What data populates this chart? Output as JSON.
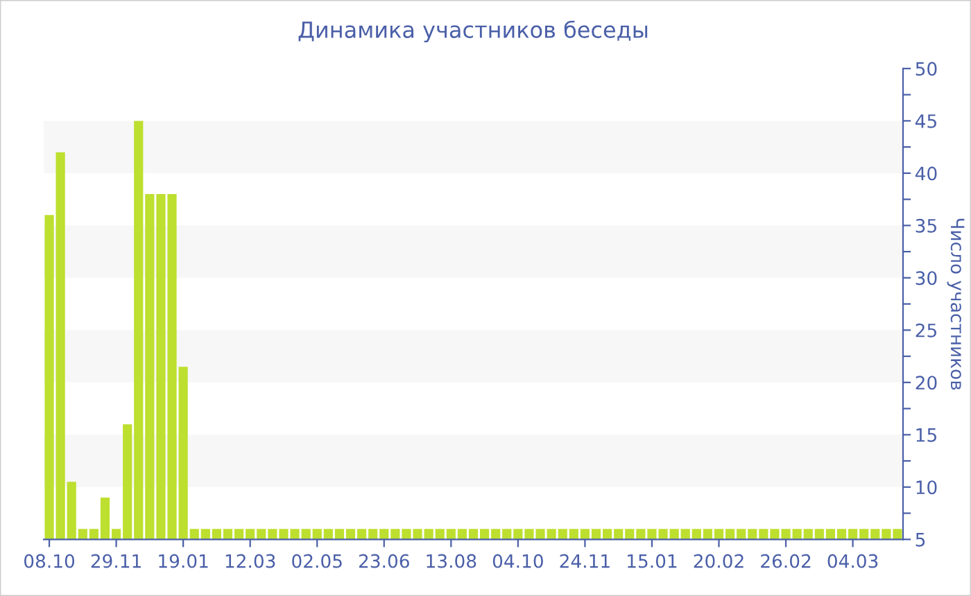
{
  "chart_data": {
    "type": "bar",
    "title": "Динамика участников беседы",
    "ylabel": "Число участников",
    "categories": [
      "08.10",
      null,
      null,
      null,
      null,
      null,
      "29.11",
      null,
      null,
      null,
      null,
      null,
      "19.01",
      null,
      null,
      null,
      null,
      null,
      "12.03",
      null,
      null,
      null,
      null,
      null,
      "02.05",
      null,
      null,
      null,
      null,
      null,
      "23.06",
      null,
      null,
      null,
      null,
      null,
      "13.08",
      null,
      null,
      null,
      null,
      null,
      "04.10",
      null,
      null,
      null,
      null,
      null,
      "24.11",
      null,
      null,
      null,
      null,
      null,
      "15.01",
      null,
      null,
      null,
      null,
      null,
      "20.02",
      null,
      null,
      null,
      null,
      null,
      "26.02",
      null,
      null,
      null,
      null,
      null,
      "04.03",
      null,
      null,
      null,
      null
    ],
    "values": [
      36,
      42,
      10.5,
      6,
      6,
      9,
      6,
      16,
      45,
      38,
      38,
      38,
      21.5,
      6,
      6,
      6,
      6,
      6,
      6,
      6,
      6,
      6,
      6,
      6,
      6,
      6,
      6,
      6,
      6,
      6,
      6,
      6,
      6,
      6,
      6,
      6,
      6,
      6,
      6,
      6,
      6,
      6,
      6,
      6,
      6,
      6,
      6,
      6,
      6,
      6,
      6,
      6,
      6,
      6,
      6,
      6,
      6,
      6,
      6,
      6,
      6,
      6,
      6,
      6,
      6,
      6,
      6,
      6,
      6,
      6,
      6,
      6,
      6,
      6,
      6,
      6,
      6
    ],
    "color": "#bddf2f",
    "ylim": [
      5,
      50
    ],
    "yticks": [
      5,
      {
        "value": 7.5,
        "label": null
      },
      10,
      {
        "value": 12.5,
        "label": null
      },
      15,
      {
        "value": 17.5,
        "label": null
      },
      20,
      {
        "value": 22.5,
        "label": null
      },
      25,
      {
        "value": 27.5,
        "label": null
      },
      30,
      {
        "value": 32.5,
        "label": null
      },
      35,
      {
        "value": 37.5,
        "label": null
      },
      40,
      {
        "value": 42.5,
        "label": null
      },
      45,
      {
        "value": 47.5,
        "label": null
      },
      50
    ],
    "bands": [
      {
        "axis": "y",
        "from": 10,
        "to": 15,
        "color": "#f7f7f7"
      },
      {
        "axis": "y",
        "from": 20,
        "to": 25,
        "color": "#f7f7f7"
      },
      {
        "axis": "y",
        "from": 30,
        "to": 35,
        "color": "#f7f7f7"
      },
      {
        "axis": "y",
        "from": 40,
        "to": 45,
        "color": "#f7f7f7"
      }
    ],
    "grid": false,
    "legend": false
  }
}
